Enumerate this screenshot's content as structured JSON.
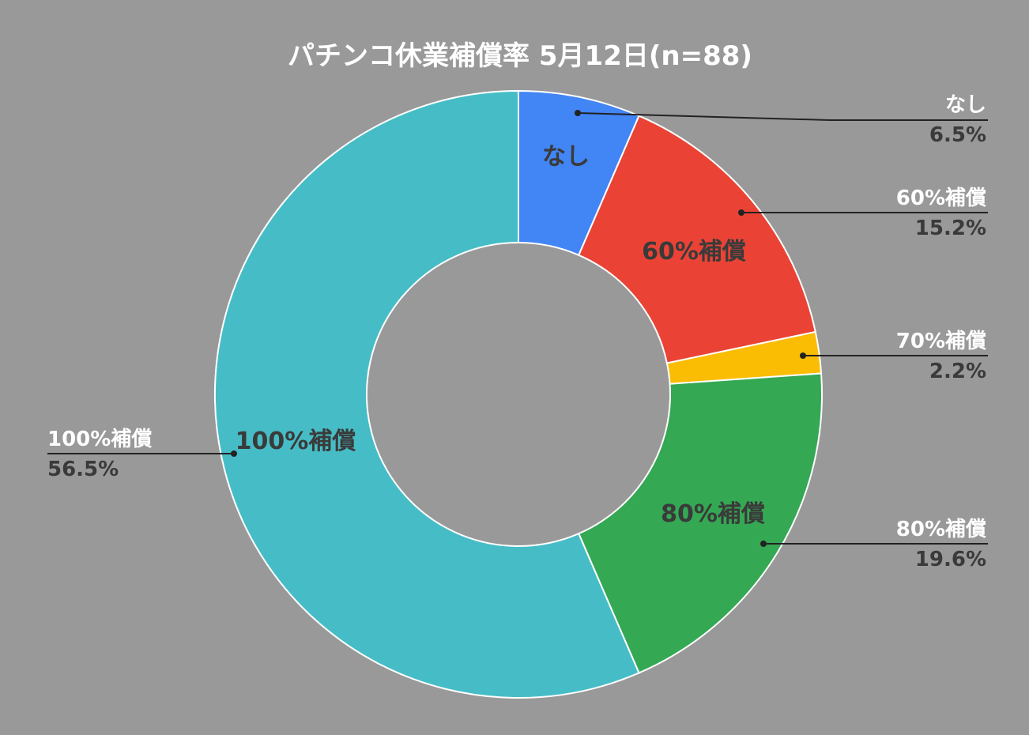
{
  "chart_data": {
    "type": "pie",
    "variant": "donut",
    "title": "パチンコ休業補償率 5月12日(n=88)",
    "legend": "callouts",
    "slices": [
      {
        "label": "なし",
        "value": 6.5,
        "value_label": "6.5%",
        "color": "#4285f4"
      },
      {
        "label": "60%補償",
        "value": 15.2,
        "value_label": "15.2%",
        "color": "#ea4335"
      },
      {
        "label": "70%補償",
        "value": 2.2,
        "value_label": "2.2%",
        "color": "#fbbc04"
      },
      {
        "label": "80%補償",
        "value": 19.6,
        "value_label": "19.6%",
        "color": "#34a853"
      },
      {
        "label": "100%補償",
        "value": 56.5,
        "value_label": "56.5%",
        "color": "#46bdc6"
      }
    ]
  },
  "colors": {
    "background": "#999999",
    "slice_border": "#ffffff",
    "title": "#ffffff",
    "dark_text": "#3a3a3a"
  }
}
